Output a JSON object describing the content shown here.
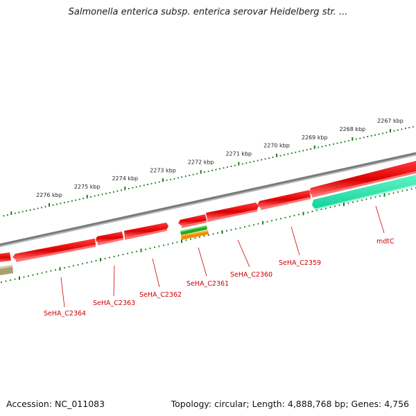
{
  "header": {
    "title": "Salmonella enterica subsp. enterica serovar Heidelberg str. ..."
  },
  "footer": {
    "accession": "Accession: NC_011083",
    "topology": "Topology: circular; Length: 4,888,768 bp; Genes: 4,756"
  },
  "map": {
    "backbone_color": "#808080",
    "ruler_color": "#1a7a1a",
    "ruler_ticks": [
      {
        "kbp": 2276,
        "label": "2276 kbp"
      },
      {
        "kbp": 2275,
        "label": "2275 kbp"
      },
      {
        "kbp": 2274,
        "label": "2274 kbp"
      },
      {
        "kbp": 2273,
        "label": "2273 kbp"
      },
      {
        "kbp": 2272,
        "label": "2272 kbp"
      },
      {
        "kbp": 2271,
        "label": "2271 kbp"
      },
      {
        "kbp": 2270,
        "label": "2270 kbp"
      },
      {
        "kbp": 2269,
        "label": "2269 kbp"
      },
      {
        "kbp": 2268,
        "label": "2268 kbp"
      },
      {
        "kbp": 2267,
        "label": "2267 kbp"
      }
    ],
    "genes": [
      {
        "name": "SeHA_C2364",
        "color": "#dd0000"
      },
      {
        "name": "SeHA_C2363",
        "color": "#dd0000"
      },
      {
        "name": "SeHA_C2362",
        "color": "#dd0000"
      },
      {
        "name": "SeHA_C2361",
        "color": "#dd0000"
      },
      {
        "name": "SeHA_C2360",
        "color": "#dd0000"
      },
      {
        "name": "SeHA_C2359",
        "color": "#dd0000"
      },
      {
        "name": "mdtC",
        "color": "#20d9a0"
      }
    ],
    "small_features": [
      {
        "color": "#22aa22"
      },
      {
        "color": "#f08c00"
      },
      {
        "color": "#a8a070"
      }
    ]
  }
}
